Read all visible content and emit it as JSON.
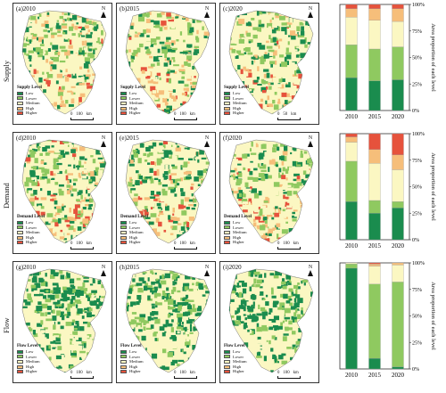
{
  "rows": [
    {
      "row_label": "Supply",
      "maps": [
        {
          "title": "(a)2010"
        },
        {
          "title": "(b)2015"
        },
        {
          "title": "(c)2020"
        }
      ],
      "legend_title": "Supply Level",
      "scale_labels": [
        "0",
        "100",
        "km"
      ],
      "scale_labels_alt": [
        "0",
        "50",
        "km"
      ],
      "map_palette": [
        "#1a8c4e",
        "#8fc960",
        "#fbf7c2",
        "#f6be7a",
        "#e6523c"
      ],
      "map_mix": [
        0.3,
        0.3,
        0.25,
        0.13,
        0.02
      ]
    },
    {
      "row_label": "Demand",
      "maps": [
        {
          "title": "(d)2010"
        },
        {
          "title": "(e)2015"
        },
        {
          "title": "(f)2020"
        }
      ],
      "legend_title": "Demand Level",
      "scale_labels": [
        "0",
        "100",
        "km"
      ],
      "map_palette": [
        "#1a8c4e",
        "#8fc960",
        "#fbf7c2",
        "#f6be7a",
        "#e6523c"
      ],
      "map_mix": [
        0.3,
        0.3,
        0.25,
        0.1,
        0.05
      ]
    },
    {
      "row_label": "Flow",
      "maps": [
        {
          "title": "(g)2010"
        },
        {
          "title": "(h)2015"
        },
        {
          "title": "(i)2020"
        }
      ],
      "legend_title": "Flow Level",
      "scale_labels": [
        "0",
        "100",
        "km"
      ],
      "map_palette": [
        "#1a8c4e",
        "#8fc960",
        "#fbf7c2",
        "#f6be7a",
        "#e6523c"
      ],
      "map_mix": [
        0.55,
        0.35,
        0.1,
        0,
        0
      ]
    }
  ],
  "legend_items": [
    "Low",
    "Lower",
    "Medium",
    "High",
    "Higher"
  ],
  "north_label": "N",
  "chart_data": [
    {
      "type": "bar",
      "stacked": true,
      "categories": [
        "2010",
        "2015",
        "2020"
      ],
      "ylabel": "Area proportion of each level",
      "ylim": [
        0,
        100
      ],
      "yticks": [
        "0%",
        "25%",
        "50%",
        "75%",
        "100%"
      ],
      "series": [
        {
          "name": "Low",
          "color": "#1a8c4e",
          "values": [
            31,
            28,
            29
          ]
        },
        {
          "name": "Lower",
          "color": "#8fc960",
          "values": [
            31,
            30,
            31
          ]
        },
        {
          "name": "Medium",
          "color": "#fbf7c2",
          "values": [
            26,
            27,
            24
          ]
        },
        {
          "name": "High",
          "color": "#f6be7a",
          "values": [
            8,
            11,
            12
          ]
        },
        {
          "name": "Higher",
          "color": "#e6523c",
          "values": [
            4,
            4,
            4
          ]
        }
      ]
    },
    {
      "type": "bar",
      "stacked": true,
      "categories": [
        "2010",
        "2015",
        "2020"
      ],
      "ylabel": "Area proportion of each level",
      "ylim": [
        0,
        100
      ],
      "yticks": [
        "0%",
        "25%",
        "50%",
        "75%",
        "100%"
      ],
      "series": [
        {
          "name": "Low",
          "color": "#1a8c4e",
          "values": [
            36,
            25,
            30
          ]
        },
        {
          "name": "Lower",
          "color": "#8fc960",
          "values": [
            38,
            12,
            6
          ]
        },
        {
          "name": "Medium",
          "color": "#fbf7c2",
          "values": [
            18,
            35,
            30
          ]
        },
        {
          "name": "High",
          "color": "#f6be7a",
          "values": [
            5,
            13,
            14
          ]
        },
        {
          "name": "Higher",
          "color": "#e6523c",
          "values": [
            3,
            15,
            20
          ]
        }
      ]
    },
    {
      "type": "bar",
      "stacked": true,
      "categories": [
        "2010",
        "2015",
        "2020"
      ],
      "ylabel": "Area proportion of each level",
      "ylim": [
        0,
        100
      ],
      "yticks": [
        "0%",
        "25%",
        "50%",
        "75%",
        "100%"
      ],
      "series": [
        {
          "name": "Low",
          "color": "#1a8c4e",
          "values": [
            95,
            10,
            2
          ]
        },
        {
          "name": "Lower",
          "color": "#8fc960",
          "values": [
            4,
            70,
            80
          ]
        },
        {
          "name": "Medium",
          "color": "#fbf7c2",
          "values": [
            1,
            17,
            16
          ]
        },
        {
          "name": "High",
          "color": "#f6be7a",
          "values": [
            0,
            2,
            2
          ]
        },
        {
          "name": "Higher",
          "color": "#e6523c",
          "values": [
            0,
            1,
            0
          ]
        }
      ]
    }
  ]
}
